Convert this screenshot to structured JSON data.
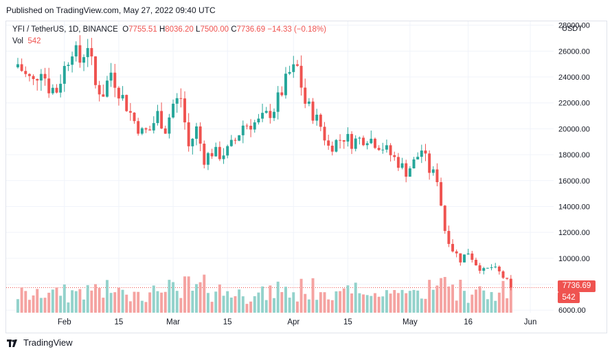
{
  "header": {
    "published": "Published on TradingView.com, May 27, 2022 09:40 UTC"
  },
  "legend": {
    "symbol": "YFI / TetherUS, 1D, BINANCE",
    "o_label": "O",
    "o_value": "7755.51",
    "h_label": "H",
    "h_value": "8036.20",
    "l_label": "L",
    "l_value": "7500.00",
    "c_label": "C",
    "c_value": "7736.69",
    "change": "−14.33 (−0.18%)",
    "vol_label": "Vol",
    "vol_value": "542"
  },
  "price_tag": "7736.69",
  "volume_tag": "542",
  "footer": {
    "brand": "TradingView"
  },
  "colors": {
    "up": "#26a69a",
    "down": "#ef5350",
    "up_vol": "#93d2cb",
    "down_vol": "#f5a3a1",
    "grid": "#f0f3fa",
    "axis_text": "#131722"
  },
  "chart_data": {
    "type": "candlestick",
    "y_axis_title": "USDT",
    "y_ticks": [
      6000,
      8000,
      10000,
      12000,
      14000,
      16000,
      18000,
      20000,
      22000,
      24000,
      26000,
      28000
    ],
    "y_tick_labels": [
      "6000.00",
      "8000.00",
      "10000.00",
      "12000.00",
      "14000.00",
      "16000.00",
      "18000.00",
      "20000.00",
      "22000.00",
      "24000.00",
      "26000.00",
      "28000.00"
    ],
    "ylim": [
      5800,
      28300
    ],
    "x_tick_labels": [
      {
        "label": "Feb",
        "date": "2022-02-01"
      },
      {
        "label": "15",
        "date": "2022-02-15"
      },
      {
        "label": "Mar",
        "date": "2022-03-01"
      },
      {
        "label": "15",
        "date": "2022-03-15"
      },
      {
        "label": "Apr",
        "date": "2022-04-01"
      },
      {
        "label": "15",
        "date": "2022-04-15"
      },
      {
        "label": "May",
        "date": "2022-05-01"
      },
      {
        "label": "16",
        "date": "2022-05-16"
      },
      {
        "label": "Jun",
        "date": "2022-06-01"
      }
    ],
    "last_price": 7736.69,
    "close_series": {
      "dates": [
        "2022-01-20",
        "2022-01-22",
        "2022-01-24",
        "2022-01-26",
        "2022-01-28",
        "2022-01-30",
        "2022-02-01",
        "2022-02-03",
        "2022-02-05",
        "2022-02-07",
        "2022-02-09",
        "2022-02-11",
        "2022-02-13",
        "2022-02-15",
        "2022-02-17",
        "2022-02-19",
        "2022-02-21",
        "2022-02-23",
        "2022-02-25",
        "2022-02-27",
        "2022-03-01",
        "2022-03-03",
        "2022-03-05",
        "2022-03-07",
        "2022-03-09",
        "2022-03-11",
        "2022-03-13",
        "2022-03-15",
        "2022-03-17",
        "2022-03-19",
        "2022-03-21",
        "2022-03-23",
        "2022-03-25",
        "2022-03-27",
        "2022-03-29",
        "2022-03-31",
        "2022-04-02",
        "2022-04-04",
        "2022-04-06",
        "2022-04-08",
        "2022-04-10",
        "2022-04-12",
        "2022-04-14",
        "2022-04-16",
        "2022-04-18",
        "2022-04-20",
        "2022-04-22",
        "2022-04-24",
        "2022-04-26",
        "2022-04-28",
        "2022-04-30",
        "2022-05-02",
        "2022-05-04",
        "2022-05-06",
        "2022-05-08",
        "2022-05-10",
        "2022-05-12",
        "2022-05-14",
        "2022-05-16",
        "2022-05-18",
        "2022-05-20",
        "2022-05-22",
        "2022-05-24",
        "2022-05-26",
        "2022-05-27"
      ],
      "closes": [
        25000,
        24100,
        23600,
        24800,
        23200,
        23000,
        24700,
        26300,
        25200,
        26600,
        23300,
        22800,
        24400,
        23000,
        21800,
        20600,
        19700,
        19900,
        21100,
        20000,
        21900,
        22400,
        18600,
        20000,
        17700,
        18200,
        18000,
        18300,
        19100,
        20300,
        20400,
        20500,
        21000,
        21600,
        22900,
        24300,
        24700,
        22000,
        21200,
        20200,
        18600,
        19000,
        19400,
        19000,
        19200,
        19400,
        19000,
        18600,
        18000,
        17400,
        16700,
        17400,
        18400,
        16800,
        16200,
        12200,
        10700,
        9900,
        10500,
        9600,
        9000,
        9300,
        8900,
        8200,
        7737
      ]
    },
    "volume_note": "volume bars shown beneath candles, last value 542"
  }
}
